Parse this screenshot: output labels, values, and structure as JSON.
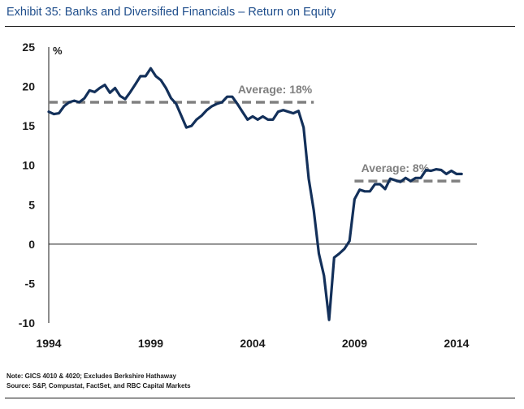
{
  "exhibit": {
    "title": "Exhibit 35: Banks and Diversified Financials – Return on Equity"
  },
  "chart_data": {
    "type": "line",
    "title": "",
    "xlabel": "",
    "ylabel": "%",
    "xlim": [
      1994,
      2015
    ],
    "ylim": [
      -10,
      25
    ],
    "yticks": [
      -10,
      -5,
      0,
      5,
      10,
      15,
      20,
      25
    ],
    "xticks": [
      1994,
      1999,
      2004,
      2009,
      2014
    ],
    "grid": false,
    "series": [
      {
        "name": "",
        "color": "#13305a",
        "x": [
          1994.0,
          1994.25,
          1994.5,
          1994.75,
          1995.0,
          1995.25,
          1995.5,
          1995.75,
          1996.0,
          1996.25,
          1996.5,
          1996.75,
          1997.0,
          1997.25,
          1997.5,
          1997.75,
          1998.0,
          1998.25,
          1998.5,
          1998.75,
          1999.0,
          1999.25,
          1999.5,
          1999.75,
          2000.0,
          2000.25,
          2000.5,
          2000.75,
          2001.0,
          2001.25,
          2001.5,
          2001.75,
          2002.0,
          2002.25,
          2002.5,
          2002.75,
          2003.0,
          2003.25,
          2003.5,
          2003.75,
          2004.0,
          2004.25,
          2004.5,
          2004.75,
          2005.0,
          2005.25,
          2005.5,
          2005.75,
          2006.0,
          2006.25,
          2006.5,
          2006.75,
          2007.0,
          2007.25,
          2007.5,
          2007.75,
          2008.0,
          2008.25,
          2008.5,
          2008.75,
          2009.0,
          2009.25,
          2009.5,
          2009.75,
          2010.0,
          2010.25,
          2010.5,
          2010.75,
          2011.0,
          2011.25,
          2011.5,
          2011.75,
          2012.0,
          2012.25,
          2012.5,
          2012.75,
          2013.0,
          2013.25,
          2013.5,
          2013.75,
          2014.0,
          2014.25
        ],
        "values": [
          16.8,
          16.5,
          16.6,
          17.5,
          18.0,
          18.2,
          18.0,
          18.5,
          19.5,
          19.3,
          19.8,
          20.2,
          19.2,
          19.8,
          18.8,
          18.4,
          19.3,
          20.3,
          21.3,
          21.3,
          22.3,
          21.3,
          20.8,
          19.8,
          18.5,
          17.8,
          16.3,
          14.8,
          15.0,
          15.8,
          16.3,
          17.0,
          17.5,
          17.8,
          18.0,
          18.7,
          18.7,
          17.8,
          16.8,
          15.8,
          16.2,
          15.8,
          16.2,
          15.8,
          15.8,
          16.8,
          17.0,
          16.8,
          16.6,
          16.9,
          14.8,
          8.3,
          4.3,
          -1.2,
          -4.0,
          -9.6,
          -1.7,
          -1.2,
          -0.6,
          0.4,
          5.7,
          6.9,
          6.7,
          6.7,
          7.6,
          7.6,
          7.0,
          8.3,
          8.1,
          7.9,
          8.4,
          8.0,
          8.4,
          8.4,
          9.4,
          9.3,
          9.5,
          9.4,
          8.9,
          9.3,
          8.9,
          8.9
        ]
      }
    ],
    "averages": [
      {
        "label": "Average: 18%",
        "value": 18,
        "x_start": 1994,
        "x_end": 2007,
        "color": "#808080"
      },
      {
        "label": "Average: 8%",
        "value": 8,
        "x_start": 2009,
        "x_end": 2014.25,
        "color": "#808080"
      }
    ]
  },
  "notes": {
    "note": "Note: GICS 4010 & 4020; Excludes Berkshire Hathaway",
    "source": "Source: S&P, Compustat, FactSet, and RBC Capital Markets"
  }
}
